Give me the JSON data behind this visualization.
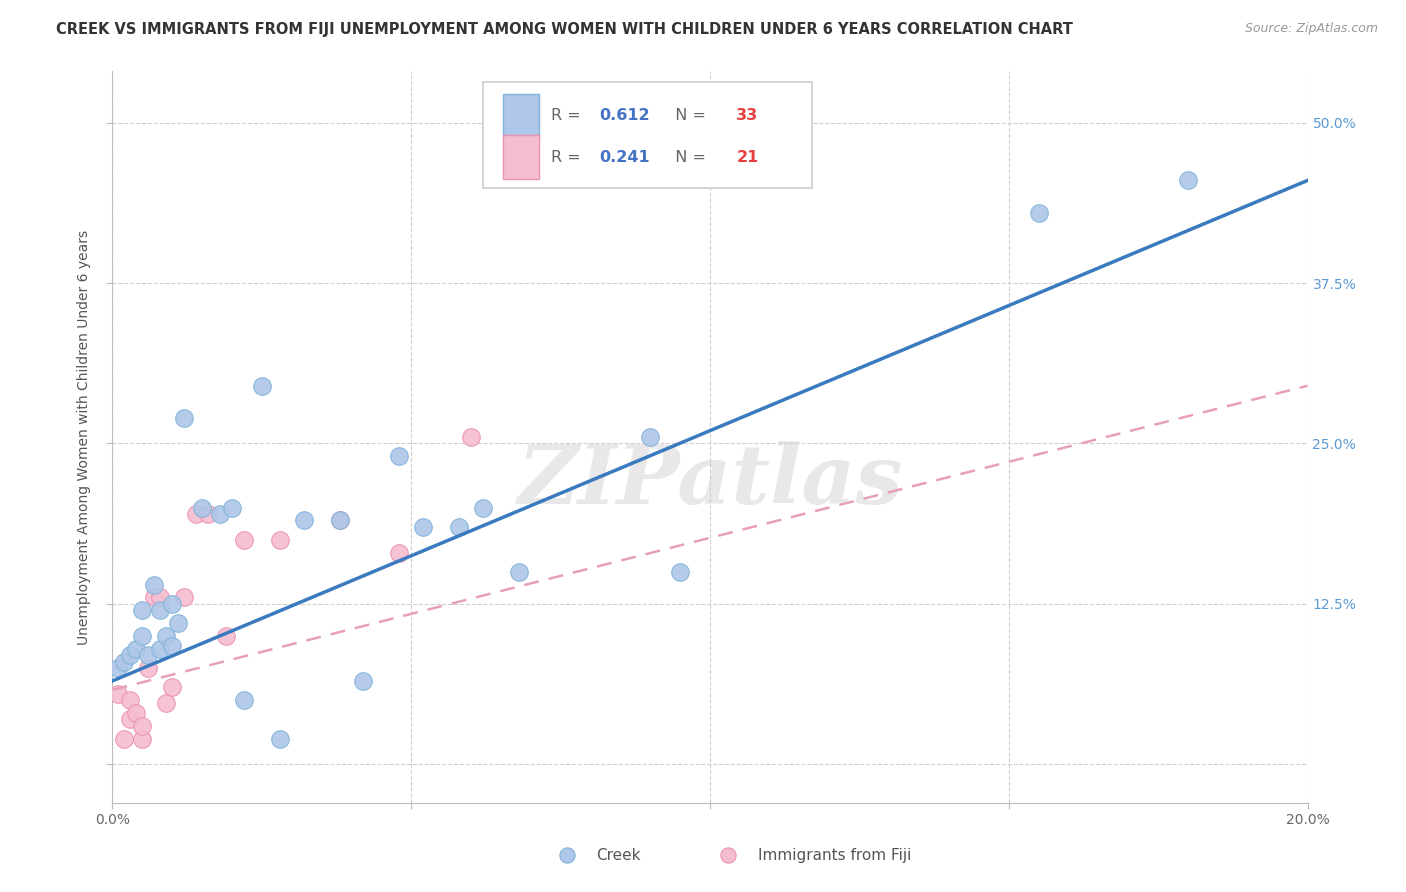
{
  "title": "CREEK VS IMMIGRANTS FROM FIJI UNEMPLOYMENT AMONG WOMEN WITH CHILDREN UNDER 6 YEARS CORRELATION CHART",
  "source": "Source: ZipAtlas.com",
  "ylabel": "Unemployment Among Women with Children Under 6 years",
  "xlim": [
    0.0,
    0.2
  ],
  "ylim": [
    -0.03,
    0.54
  ],
  "creek_color": "#aec6e8",
  "creek_edge_color": "#7fb3d9",
  "fiji_color": "#f5bdd0",
  "fiji_edge_color": "#ed90b0",
  "creek_line_color": "#3a7abf",
  "fiji_line_color": "#e8a0b8",
  "creek_R": 0.612,
  "creek_N": 33,
  "fiji_R": 0.241,
  "fiji_N": 21,
  "watermark": "ZIPatlas",
  "background_color": "#ffffff",
  "grid_color": "#d0d0d0",
  "ytick_color": "#5b9bd5",
  "xtick_color": "#666666",
  "creek_x": [
    0.001,
    0.002,
    0.003,
    0.004,
    0.005,
    0.005,
    0.006,
    0.007,
    0.008,
    0.008,
    0.009,
    0.01,
    0.01,
    0.011,
    0.012,
    0.015,
    0.018,
    0.02,
    0.022,
    0.025,
    0.028,
    0.032,
    0.038,
    0.042,
    0.048,
    0.052,
    0.058,
    0.062,
    0.068,
    0.09,
    0.095,
    0.155,
    0.18
  ],
  "creek_y": [
    0.075,
    0.08,
    0.085,
    0.09,
    0.1,
    0.12,
    0.085,
    0.14,
    0.09,
    0.12,
    0.1,
    0.092,
    0.125,
    0.11,
    0.27,
    0.2,
    0.195,
    0.2,
    0.05,
    0.295,
    0.02,
    0.19,
    0.19,
    0.065,
    0.24,
    0.185,
    0.185,
    0.2,
    0.15,
    0.255,
    0.15,
    0.43,
    0.455
  ],
  "fiji_x": [
    0.001,
    0.002,
    0.003,
    0.003,
    0.004,
    0.005,
    0.005,
    0.006,
    0.007,
    0.008,
    0.009,
    0.01,
    0.012,
    0.014,
    0.016,
    0.019,
    0.022,
    0.028,
    0.038,
    0.048,
    0.06
  ],
  "fiji_y": [
    0.055,
    0.02,
    0.035,
    0.05,
    0.04,
    0.02,
    0.03,
    0.075,
    0.13,
    0.13,
    0.048,
    0.06,
    0.13,
    0.195,
    0.195,
    0.1,
    0.175,
    0.175,
    0.19,
    0.165,
    0.255
  ],
  "creek_line_x0": 0.0,
  "creek_line_y0": 0.065,
  "creek_line_x1": 0.2,
  "creek_line_y1": 0.455,
  "fiji_line_x0": 0.0,
  "fiji_line_y0": 0.058,
  "fiji_line_x1": 0.2,
  "fiji_line_y1": 0.295
}
